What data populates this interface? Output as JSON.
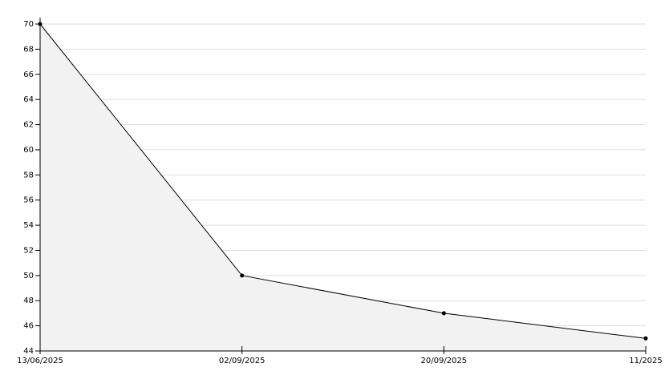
{
  "chart_data": {
    "type": "area",
    "categories": [
      "13/06/2025",
      "02/09/2025",
      "20/09/2025",
      "11/2025"
    ],
    "values": [
      70,
      50,
      47,
      45
    ],
    "color": "#000000",
    "fill_color": "#f2f2f2",
    "ylim": [
      44,
      70
    ],
    "yticks": [
      44,
      46,
      48,
      50,
      52,
      54,
      56,
      58,
      60,
      62,
      64,
      66,
      68,
      70
    ],
    "grid": true
  }
}
